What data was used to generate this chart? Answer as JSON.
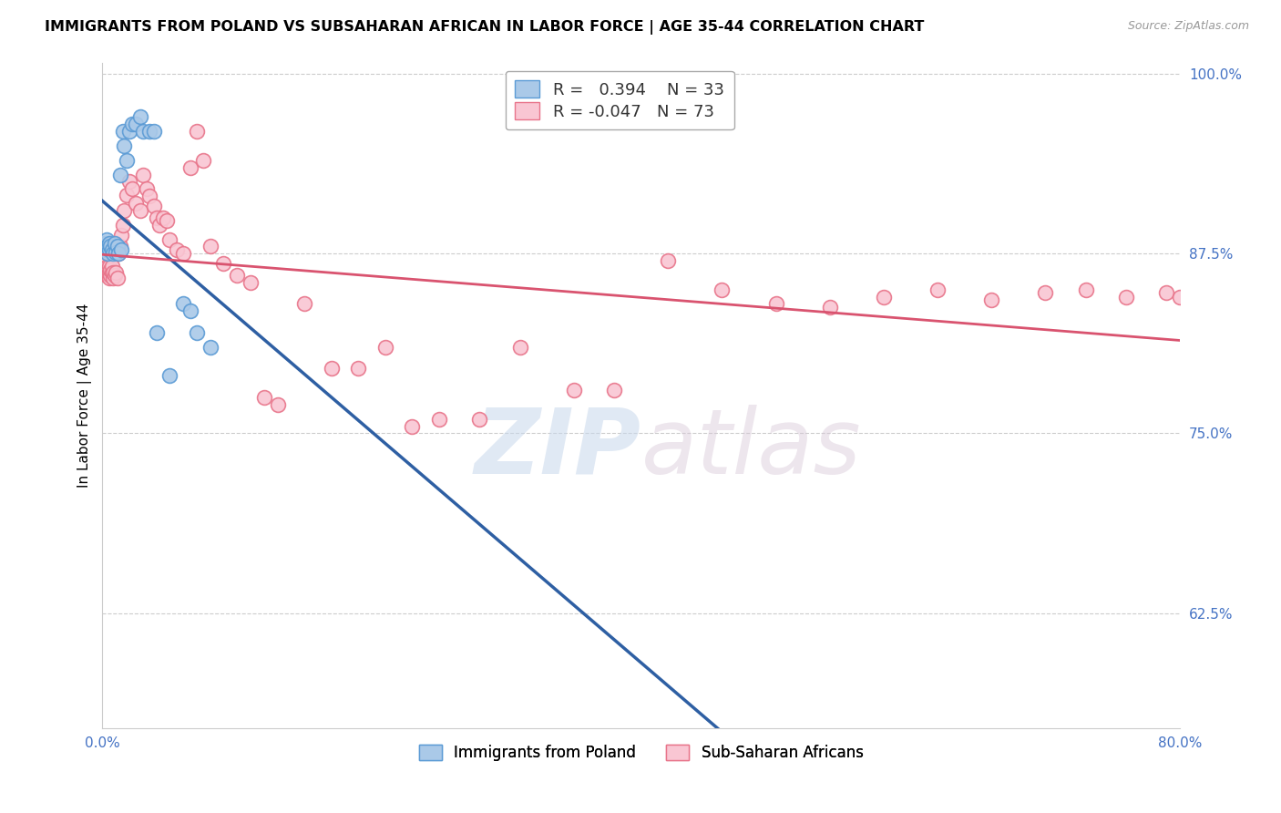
{
  "title": "IMMIGRANTS FROM POLAND VS SUBSAHARAN AFRICAN IN LABOR FORCE | AGE 35-44 CORRELATION CHART",
  "source": "Source: ZipAtlas.com",
  "ylabel_label": "In Labor Force | Age 35-44",
  "xlim": [
    0.0,
    0.8
  ],
  "ylim": [
    0.545,
    1.008
  ],
  "ytick_vals": [
    0.625,
    0.75,
    0.875,
    1.0
  ],
  "ytick_labels": [
    "62.5%",
    "75.0%",
    "87.5%",
    "100.0%"
  ],
  "xtick_vals": [
    0.0,
    0.1,
    0.2,
    0.3,
    0.4,
    0.5,
    0.6,
    0.7,
    0.8
  ],
  "xtick_labels": [
    "0.0%",
    "",
    "",
    "",
    "",
    "",
    "",
    "",
    "80.0%"
  ],
  "poland_color": "#aac9e8",
  "poland_edge_color": "#5b9bd5",
  "subsaharan_color": "#f9c6d3",
  "subsaharan_edge_color": "#e8748a",
  "poland_R": 0.394,
  "poland_N": 33,
  "subsaharan_R": -0.047,
  "subsaharan_N": 73,
  "poland_line_color": "#2e5fa3",
  "subsaharan_line_color": "#d9536f",
  "watermark_zip": "ZIP",
  "watermark_atlas": "atlas",
  "legend_label_poland": "Immigrants from Poland",
  "legend_label_subsaharan": "Sub-Saharan Africans",
  "poland_x": [
    0.001,
    0.002,
    0.003,
    0.003,
    0.004,
    0.004,
    0.005,
    0.005,
    0.006,
    0.007,
    0.008,
    0.009,
    0.01,
    0.011,
    0.012,
    0.013,
    0.014,
    0.015,
    0.016,
    0.018,
    0.02,
    0.022,
    0.025,
    0.028,
    0.03,
    0.035,
    0.038,
    0.04,
    0.05,
    0.06,
    0.065,
    0.07,
    0.08
  ],
  "poland_y": [
    0.88,
    0.882,
    0.878,
    0.885,
    0.875,
    0.88,
    0.878,
    0.882,
    0.88,
    0.878,
    0.875,
    0.882,
    0.876,
    0.88,
    0.875,
    0.93,
    0.878,
    0.96,
    0.95,
    0.94,
    0.96,
    0.965,
    0.965,
    0.97,
    0.96,
    0.96,
    0.96,
    0.82,
    0.79,
    0.84,
    0.835,
    0.82,
    0.81
  ],
  "subsaharan_x": [
    0.001,
    0.001,
    0.002,
    0.002,
    0.003,
    0.003,
    0.003,
    0.004,
    0.004,
    0.005,
    0.005,
    0.005,
    0.006,
    0.006,
    0.007,
    0.007,
    0.008,
    0.008,
    0.009,
    0.01,
    0.011,
    0.012,
    0.013,
    0.014,
    0.015,
    0.016,
    0.018,
    0.02,
    0.022,
    0.025,
    0.028,
    0.03,
    0.033,
    0.035,
    0.038,
    0.04,
    0.042,
    0.045,
    0.048,
    0.05,
    0.055,
    0.06,
    0.065,
    0.07,
    0.075,
    0.08,
    0.09,
    0.1,
    0.11,
    0.12,
    0.13,
    0.15,
    0.17,
    0.19,
    0.21,
    0.23,
    0.25,
    0.28,
    0.31,
    0.35,
    0.38,
    0.42,
    0.46,
    0.5,
    0.54,
    0.58,
    0.62,
    0.66,
    0.7,
    0.73,
    0.76,
    0.79,
    0.8
  ],
  "subsaharan_y": [
    0.87,
    0.866,
    0.868,
    0.872,
    0.86,
    0.864,
    0.868,
    0.862,
    0.866,
    0.858,
    0.862,
    0.866,
    0.86,
    0.864,
    0.862,
    0.866,
    0.858,
    0.862,
    0.86,
    0.862,
    0.858,
    0.875,
    0.88,
    0.888,
    0.895,
    0.905,
    0.916,
    0.925,
    0.92,
    0.91,
    0.905,
    0.93,
    0.92,
    0.915,
    0.908,
    0.9,
    0.895,
    0.9,
    0.898,
    0.885,
    0.878,
    0.875,
    0.935,
    0.96,
    0.94,
    0.88,
    0.868,
    0.86,
    0.855,
    0.775,
    0.77,
    0.84,
    0.795,
    0.795,
    0.81,
    0.755,
    0.76,
    0.76,
    0.81,
    0.78,
    0.78,
    0.87,
    0.85,
    0.84,
    0.838,
    0.845,
    0.85,
    0.843,
    0.848,
    0.85,
    0.845,
    0.848,
    0.845
  ]
}
